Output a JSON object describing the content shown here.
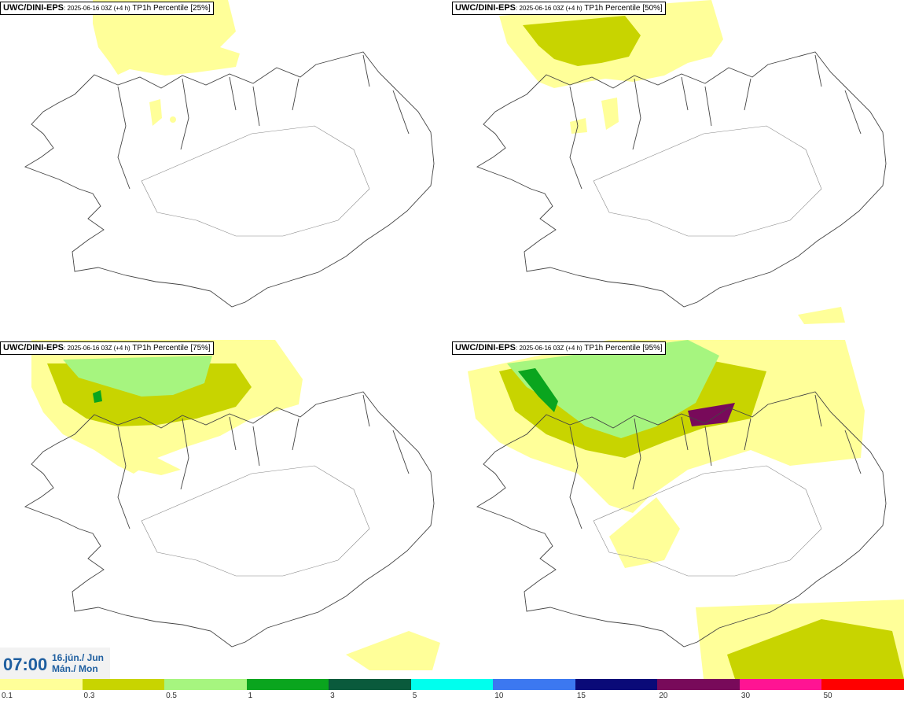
{
  "panels": [
    {
      "model": "UWC/DINI-EPS",
      "run": ": 2025-06-16 03Z (+4 h)",
      "param": " TP1h Percentile [25%]"
    },
    {
      "model": "UWC/DINI-EPS",
      "run": ": 2025-06-16 03Z (+4 h)",
      "param": " TP1h Percentile [50%]"
    },
    {
      "model": "UWC/DINI-EPS",
      "run": ": 2025-06-16 03Z (+4 h)",
      "param": " TP1h Percentile [75%]"
    },
    {
      "model": "UWC/DINI-EPS",
      "run": ": 2025-06-16 03Z (+4 h)",
      "param": " TP1h Percentile [95%]"
    }
  ],
  "time": {
    "clock": "07:00",
    "date_line1": "16.jún./ Jun",
    "date_line2": "Mán./ Mon"
  },
  "legend": {
    "labels": [
      "0.1",
      "0.3",
      "0.5",
      "1",
      "3",
      "5",
      "10",
      "15",
      "20",
      "30",
      "50"
    ],
    "colors": [
      "#ffff99",
      "#c8d400",
      "#a6f57f",
      "#0aa51e",
      "#0a5a3c",
      "#00ffee",
      "#3c78f0",
      "#0a0a78",
      "#780a5a",
      "#ff1493",
      "#ff0000"
    ]
  }
}
